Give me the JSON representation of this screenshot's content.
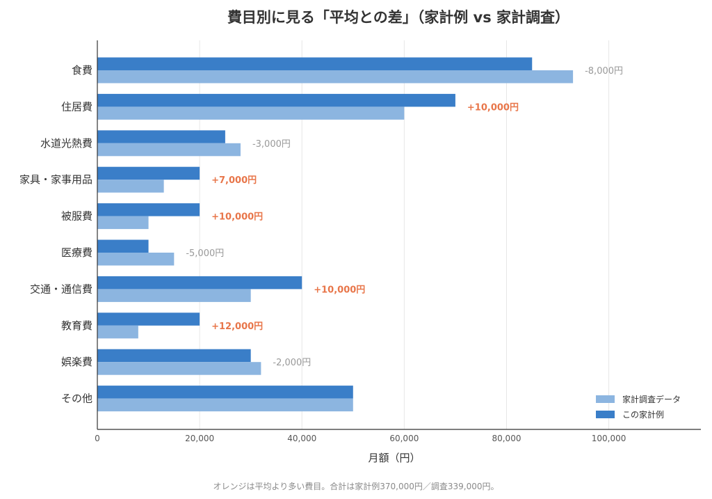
{
  "chart_data": {
    "type": "bar",
    "orientation": "horizontal",
    "title": "費目別に見る「平均との差」（家計例 vs 家計調査）",
    "xlabel": "月額（円）",
    "ylabel": "",
    "xlim": [
      0,
      118000
    ],
    "xticks": [
      0,
      20000,
      40000,
      60000,
      80000,
      100000
    ],
    "xtick_labels": [
      "0",
      "20,000",
      "40,000",
      "60,000",
      "80,000",
      "100,000"
    ],
    "grid": "vertical",
    "legend_position": "bottom-right",
    "categories": [
      "食費",
      "住居費",
      "水道光熱費",
      "家具・家事用品",
      "被服費",
      "医療費",
      "交通・通信費",
      "教育費",
      "娯楽費",
      "その他"
    ],
    "series": [
      {
        "name": "この家計例",
        "color": "#3a7ec8",
        "values": [
          85000,
          70000,
          25000,
          20000,
          20000,
          10000,
          40000,
          20000,
          30000,
          50000
        ]
      },
      {
        "name": "家計調査データ",
        "color": "#8cb5e0",
        "values": [
          93000,
          60000,
          28000,
          13000,
          10000,
          15000,
          30000,
          8000,
          32000,
          50000
        ]
      }
    ],
    "annotations": [
      "-8,000円",
      "+10,000円",
      "-3,000円",
      "+7,000円",
      "+10,000円",
      "-5,000円",
      "+10,000円",
      "+12,000円",
      "-2,000円",
      ""
    ],
    "annotation_colors": {
      "positive": "#e8764a",
      "negative": "#999999"
    }
  },
  "footnote": "オレンジは平均より多い費目。合計は家計例370,000円／調査339,000円。"
}
